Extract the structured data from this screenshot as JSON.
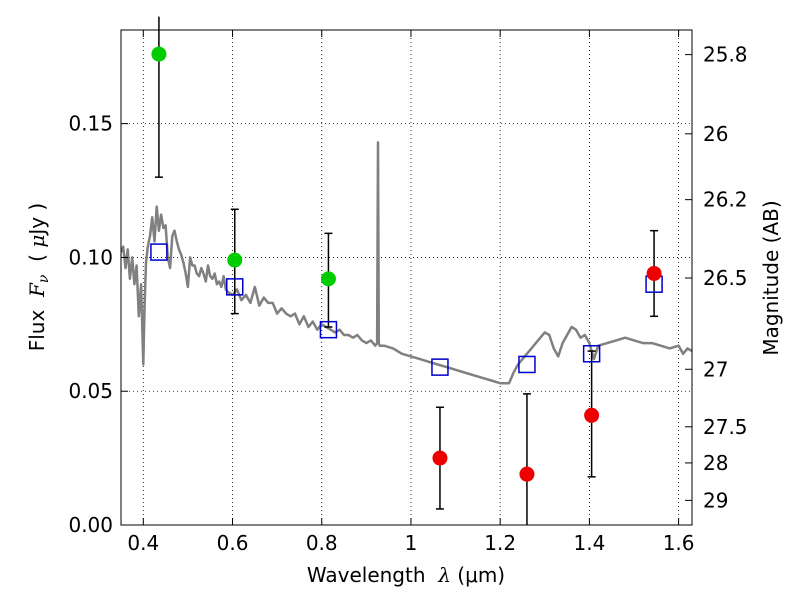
{
  "chart_data": {
    "type": "scatter",
    "x_axis": {
      "label_prefix": "Wavelength",
      "label_symbol": "λ",
      "label_unit": "(μm)",
      "range": [
        0.35,
        1.63
      ],
      "ticks": [
        0.4,
        0.6,
        0.8,
        1.0,
        1.2,
        1.4,
        1.6
      ],
      "tick_labels": [
        "0.4",
        "0.6",
        "0.8",
        "1",
        "1.2",
        "1.4",
        "1.6"
      ]
    },
    "y_axis": {
      "label_prefix": "Flux",
      "label_symbol": "F",
      "label_symbol_sub": "ν",
      "label_unit_open": "(",
      "label_unit_mu": "μ",
      "label_unit_rest": "Jy )",
      "range": [
        0.0,
        0.185
      ],
      "ticks": [
        0.0,
        0.05,
        0.1,
        0.15
      ],
      "tick_labels": [
        "0.00",
        "0.05",
        "0.10",
        "0.15"
      ]
    },
    "right_axis": {
      "label": "Magnitude (AB)",
      "tick_labels": [
        "25.8",
        "26",
        "26.2",
        "26.5",
        "27",
        "27.5",
        "28",
        "29"
      ],
      "tick_flux": [
        0.1758,
        0.1462,
        0.1216,
        0.0923,
        0.0582,
        0.0367,
        0.0232,
        0.0092
      ]
    },
    "grid": true,
    "series": [
      {
        "kind": "model-spectrum",
        "color": "#808080",
        "x": [
          0.35,
          0.355,
          0.36,
          0.365,
          0.37,
          0.375,
          0.38,
          0.385,
          0.39,
          0.395,
          0.4,
          0.403,
          0.406,
          0.41,
          0.415,
          0.42,
          0.425,
          0.43,
          0.435,
          0.44,
          0.445,
          0.45,
          0.455,
          0.46,
          0.465,
          0.47,
          0.475,
          0.48,
          0.485,
          0.49,
          0.495,
          0.5,
          0.505,
          0.51,
          0.515,
          0.52,
          0.525,
          0.53,
          0.535,
          0.54,
          0.545,
          0.55,
          0.555,
          0.56,
          0.565,
          0.57,
          0.575,
          0.58,
          0.585,
          0.59,
          0.6,
          0.61,
          0.62,
          0.63,
          0.64,
          0.65,
          0.66,
          0.67,
          0.68,
          0.69,
          0.7,
          0.71,
          0.72,
          0.73,
          0.74,
          0.75,
          0.76,
          0.77,
          0.78,
          0.79,
          0.8,
          0.81,
          0.82,
          0.83,
          0.84,
          0.85,
          0.86,
          0.87,
          0.88,
          0.89,
          0.9,
          0.91,
          0.92,
          0.924,
          0.926,
          0.928,
          0.93,
          0.94,
          0.96,
          0.98,
          1.0,
          1.02,
          1.04,
          1.06,
          1.08,
          1.1,
          1.12,
          1.14,
          1.16,
          1.18,
          1.2,
          1.22,
          1.23,
          1.24,
          1.25,
          1.26,
          1.27,
          1.28,
          1.29,
          1.3,
          1.31,
          1.32,
          1.33,
          1.34,
          1.35,
          1.36,
          1.37,
          1.38,
          1.39,
          1.4,
          1.41,
          1.42,
          1.44,
          1.46,
          1.48,
          1.5,
          1.52,
          1.54,
          1.56,
          1.58,
          1.6,
          1.61,
          1.62,
          1.63
        ],
        "y": [
          0.102,
          0.104,
          0.096,
          0.103,
          0.092,
          0.1,
          0.09,
          0.097,
          0.078,
          0.09,
          0.06,
          0.082,
          0.098,
          0.104,
          0.108,
          0.115,
          0.106,
          0.119,
          0.11,
          0.116,
          0.111,
          0.112,
          0.1,
          0.096,
          0.108,
          0.11,
          0.106,
          0.103,
          0.101,
          0.098,
          0.094,
          0.089,
          0.1,
          0.097,
          0.097,
          0.094,
          0.093,
          0.096,
          0.094,
          0.091,
          0.097,
          0.093,
          0.092,
          0.094,
          0.09,
          0.091,
          0.089,
          0.093,
          0.088,
          0.087,
          0.086,
          0.088,
          0.084,
          0.086,
          0.083,
          0.089,
          0.082,
          0.085,
          0.083,
          0.083,
          0.079,
          0.081,
          0.079,
          0.078,
          0.079,
          0.075,
          0.078,
          0.074,
          0.076,
          0.073,
          0.075,
          0.074,
          0.073,
          0.072,
          0.073,
          0.071,
          0.071,
          0.07,
          0.071,
          0.069,
          0.068,
          0.069,
          0.067,
          0.068,
          0.143,
          0.068,
          0.067,
          0.067,
          0.066,
          0.064,
          0.063,
          0.062,
          0.061,
          0.06,
          0.059,
          0.058,
          0.057,
          0.056,
          0.055,
          0.054,
          0.053,
          0.053,
          0.057,
          0.06,
          0.062,
          0.064,
          0.066,
          0.068,
          0.07,
          0.072,
          0.071,
          0.066,
          0.063,
          0.068,
          0.071,
          0.074,
          0.073,
          0.07,
          0.071,
          0.068,
          0.062,
          0.067,
          0.068,
          0.069,
          0.07,
          0.069,
          0.068,
          0.068,
          0.067,
          0.066,
          0.067,
          0.064,
          0.066,
          0.065
        ]
      },
      {
        "kind": "model-photometry",
        "marker": "open-square",
        "color": "#0000cc",
        "x": [
          0.435,
          0.605,
          0.815,
          1.065,
          1.26,
          1.405,
          1.545
        ],
        "y": [
          0.102,
          0.089,
          0.073,
          0.059,
          0.06,
          0.064,
          0.09
        ]
      },
      {
        "kind": "detections",
        "marker": "filled-circle",
        "color": "#00cc00",
        "x": [
          0.435,
          0.605,
          0.815
        ],
        "y": [
          0.176,
          0.099,
          0.092
        ],
        "err_low": [
          0.13,
          0.079,
          0.074
        ],
        "err_high": [
          0.19,
          0.118,
          0.109
        ]
      },
      {
        "kind": "upper-limits",
        "marker": "filled-circle",
        "color": "#ee0000",
        "x": [
          1.065,
          1.26,
          1.405,
          1.545
        ],
        "y": [
          0.025,
          0.019,
          0.041,
          0.094
        ],
        "err_low": [
          0.006,
          0.0,
          0.018,
          0.078
        ],
        "err_high": [
          0.044,
          0.049,
          0.065,
          0.11
        ]
      }
    ]
  }
}
